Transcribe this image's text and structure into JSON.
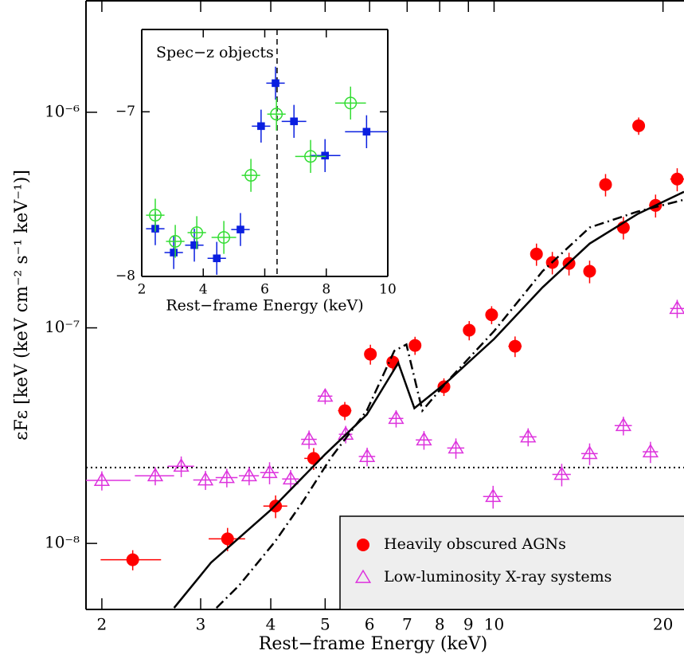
{
  "chart_data": [
    {
      "type": "scatter",
      "xlabel": "Rest−frame Energy (keV)",
      "ylabel": "εFε [keV (keV cm⁻² s⁻¹ keV⁻¹)]",
      "xlog": true,
      "ylog": true,
      "xlim": [
        1.874,
        21.8
      ],
      "ylim": [
        4.94e-09,
        3.29e-06
      ],
      "xticks": [
        2,
        3,
        4,
        5,
        6,
        7,
        8,
        9,
        10,
        20
      ],
      "yticks": [
        {
          "value": 1e-08,
          "label": "10⁻⁸"
        },
        {
          "value": 1e-07,
          "label": "10⁻⁷"
        },
        {
          "value": 1e-06,
          "label": "10⁻⁶"
        }
      ],
      "hline": 2.25e-08,
      "legend": "lower right",
      "series": [
        {
          "name": "Heavily obscured AGNs",
          "color": "#ff0000",
          "marker": "circle",
          "x": [
            2.27,
            3.35,
            4.08,
            4.77,
            5.42,
            6.02,
            6.6,
            7.23,
            8.14,
            9.03,
            9.9,
            10.9,
            11.9,
            12.7,
            13.6,
            14.8,
            15.8,
            17.0,
            18.1,
            19.4,
            21.2
          ],
          "values": [
            8.4e-09,
            1.05e-08,
            1.49e-08,
            2.48e-08,
            4.13e-08,
            7.55e-08,
            6.94e-08,
            8.29e-08,
            5.33e-08,
            9.75e-08,
            1.15e-07,
            8.22e-08,
            2.2e-07,
            2.01e-07,
            1.99e-07,
            1.83e-07,
            4.62e-07,
            2.92e-07,
            8.66e-07,
            3.7e-07,
            4.9e-07
          ],
          "xerr": [
            0.28,
            0.25,
            0.2,
            0.18,
            0.15,
            0.1,
            0.1,
            0.15,
            0.2,
            0.2,
            0.2,
            0.3,
            0.2,
            0.3,
            0.3,
            0.3,
            0.3,
            0.4,
            0.4,
            0.5,
            0.6
          ],
          "yerr": [
            9e-10,
            1.3e-09,
            1.8e-09,
            2.9e-09,
            4e-09,
            8e-09,
            7e-09,
            8e-09,
            5e-09,
            1e-08,
            1.1e-08,
            9e-09,
            2.6e-08,
            2.4e-08,
            2.4e-08,
            2.2e-08,
            5.5e-08,
            3.5e-08,
            8e-08,
            4.5e-08,
            6e-08
          ]
        },
        {
          "name": "Low-luminosity X-ray systems",
          "color": "#dd33dd",
          "marker": "triangle",
          "x": [
            2.0,
            2.49,
            2.77,
            3.06,
            3.34,
            3.66,
            3.98,
            4.34,
            4.68,
            5.0,
            5.44,
            5.94,
            6.69,
            7.5,
            8.55,
            9.96,
            11.5,
            13.2,
            14.8,
            17.0,
            19.0,
            21.2
          ],
          "values": [
            1.96e-08,
            2.06e-08,
            2.28e-08,
            1.97e-08,
            2.02e-08,
            2.06e-08,
            2.13e-08,
            1.99e-08,
            3.04e-08,
            4.82e-08,
            3.21e-08,
            2.53e-08,
            3.8e-08,
            3.02e-08,
            2.77e-08,
            1.65e-08,
            3.12e-08,
            2.09e-08,
            2.61e-08,
            3.52e-08,
            2.66e-08,
            1.23e-07
          ],
          "xerr": [
            0.25,
            0.2,
            0.15,
            0.15,
            0.15,
            0.15,
            0.15,
            0.15,
            0.15,
            0.15,
            0.15,
            0.2,
            0.2,
            0.25,
            0.3,
            0.4,
            0.4,
            0.5,
            0.5,
            0.6,
            0.6,
            0.6
          ],
          "yerr": [
            2e-09,
            2e-09,
            2.5e-09,
            2e-09,
            2e-09,
            2e-09,
            2.5e-09,
            2e-09,
            3e-09,
            4e-09,
            3e-09,
            2.5e-09,
            3.5e-09,
            3e-09,
            3e-09,
            2e-09,
            3e-09,
            2.5e-09,
            3e-09,
            3.5e-09,
            3e-09,
            1.2e-08
          ]
        },
        {
          "color": "#000000",
          "style": "solid",
          "x": [
            2.69,
            3.13,
            4.0,
            5.0,
            5.93,
            6.75,
            7.21,
            8.21,
            10.0,
            12.2,
            14.8,
            18.0,
            21.8
          ],
          "values": [
            5.02e-09,
            8.15e-09,
            1.43e-08,
            2.59e-08,
            3.96e-08,
            6.88e-08,
            4.24e-08,
            5.56e-08,
            8.88e-08,
            1.54e-07,
            2.46e-07,
            3.37e-07,
            4.28e-07
          ]
        },
        {
          "color": "#000000",
          "style": "dashdot",
          "x": [
            3.2,
            3.51,
            4.07,
            4.56,
            5.11,
            5.93,
            6.64,
            6.98,
            7.45,
            8.21,
            10.0,
            12.2,
            14.8,
            18.0,
            21.8
          ],
          "values": [
            5.02e-09,
            6.37e-09,
            1.02e-08,
            1.56e-08,
            2.48e-08,
            4.13e-08,
            7.82e-08,
            8.37e-08,
            4.13e-08,
            5.56e-08,
            9.66e-08,
            1.83e-07,
            2.92e-07,
            3.46e-07,
            3.93e-07
          ]
        }
      ]
    },
    {
      "type": "scatter",
      "title": "Spec−z objects",
      "xlabel": "Rest−frame Energy (keV)",
      "xlog": false,
      "ylog": false,
      "xlim": [
        2,
        10
      ],
      "ylim": [
        -8,
        -6.5
      ],
      "xticks": [
        2,
        4,
        6,
        8,
        10
      ],
      "yticks": [
        {
          "value": -8,
          "label": "−8"
        },
        {
          "value": -7,
          "label": "−7"
        }
      ],
      "vline": 6.4,
      "series": [
        {
          "color": "#0a1fe0",
          "marker": "square",
          "x": [
            2.44,
            3.04,
            3.71,
            4.44,
            5.21,
            5.88,
            6.35,
            6.95,
            7.96,
            9.31
          ],
          "values": [
            -7.71,
            -7.855,
            -7.81,
            -7.89,
            -7.715,
            -7.087,
            -6.826,
            -7.058,
            -7.266,
            -7.121
          ],
          "xerr": [
            0.3,
            0.3,
            0.3,
            0.3,
            0.3,
            0.3,
            0.3,
            0.4,
            0.5,
            0.7
          ],
          "yerr": [
            0.1,
            0.1,
            0.1,
            0.1,
            0.1,
            0.1,
            0.1,
            0.1,
            0.1,
            0.1
          ]
        },
        {
          "color": "#33dd33",
          "marker": "open-circle",
          "x": [
            2.44,
            3.09,
            3.79,
            4.67,
            5.55,
            6.38,
            7.49,
            8.79
          ],
          "values": [
            -7.628,
            -7.787,
            -7.734,
            -7.763,
            -7.386,
            -7.014,
            -7.271,
            -6.947
          ],
          "xerr": [
            0.3,
            0.3,
            0.3,
            0.4,
            0.3,
            0.3,
            0.5,
            0.5
          ],
          "yerr": [
            0.1,
            0.1,
            0.1,
            0.1,
            0.1,
            0.1,
            0.1,
            0.1
          ]
        }
      ]
    }
  ]
}
